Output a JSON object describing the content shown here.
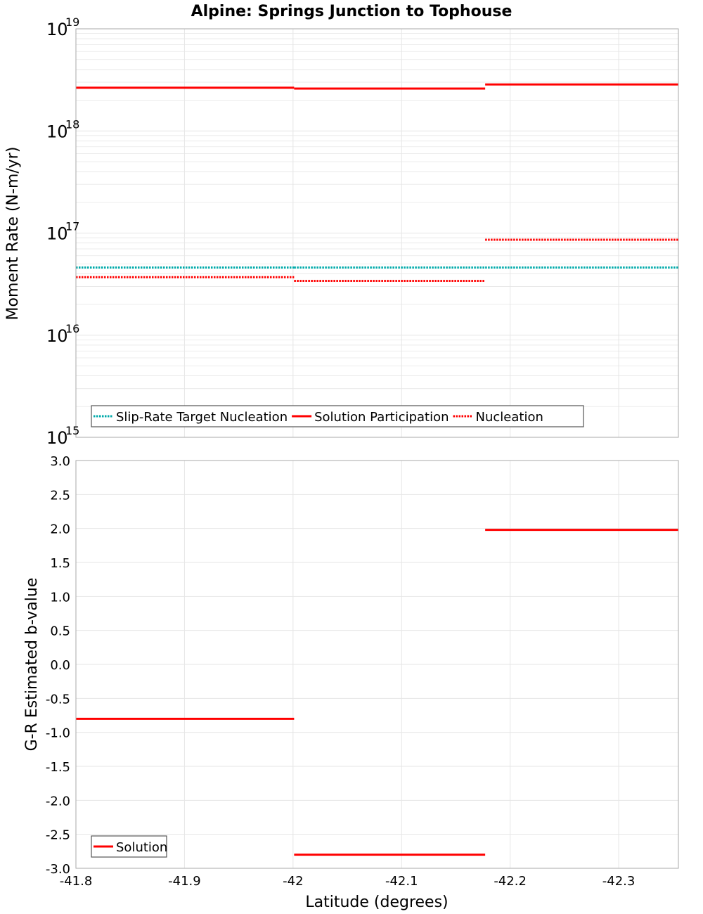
{
  "title": "Alpine: Springs Junction to Tophouse",
  "colors": {
    "solution": "#ff0000",
    "nucleation": "#ff0000",
    "target": "#00aaaa",
    "grid": "#e6e6e6",
    "frame": "#aaaaaa"
  },
  "chart_data": [
    {
      "type": "line",
      "name": "moment-rate",
      "ylabel": "Moment Rate (N-m/yr)",
      "yscale": "log",
      "ylim": [
        1000000000000000.0,
        1e+19
      ],
      "xlim": [
        -41.8,
        -42.355
      ],
      "y_ticks": [
        {
          "value": 1000000000000000.0,
          "base": "10",
          "exp": "15"
        },
        {
          "value": 1e+16,
          "base": "10",
          "exp": "16"
        },
        {
          "value": 1e+17,
          "base": "10",
          "exp": "17"
        },
        {
          "value": 1e+18,
          "base": "10",
          "exp": "18"
        },
        {
          "value": 1e+19,
          "base": "10",
          "exp": "19"
        }
      ],
      "legend": [
        {
          "label": "Slip-Rate Target Nucleation",
          "style": "dotted",
          "color": "#00aaaa"
        },
        {
          "label": "Solution Participation",
          "style": "solid",
          "color": "#ff0000"
        },
        {
          "label": "Nucleation",
          "style": "dotted",
          "color": "#ff0000"
        }
      ],
      "series": [
        {
          "name": "Slip-Rate Target Nucleation",
          "style": "dotted",
          "color": "#00aaaa",
          "segments": [
            {
              "x": [
                -41.8,
                -42.001
              ],
              "y": 4.6e+16
            },
            {
              "x": [
                -42.001,
                -42.177
              ],
              "y": 4.6e+16
            },
            {
              "x": [
                -42.177,
                -42.355
              ],
              "y": 4.6e+16
            }
          ]
        },
        {
          "name": "Solution Participation",
          "style": "solid",
          "color": "#ff0000",
          "segments": [
            {
              "x": [
                -41.8,
                -42.001
              ],
              "y": 2.65e+18
            },
            {
              "x": [
                -42.001,
                -42.177
              ],
              "y": 2.6e+18
            },
            {
              "x": [
                -42.177,
                -42.355
              ],
              "y": 2.85e+18
            }
          ]
        },
        {
          "name": "Nucleation",
          "style": "dotted",
          "color": "#ff0000",
          "segments": [
            {
              "x": [
                -41.8,
                -42.001
              ],
              "y": 3.7e+16
            },
            {
              "x": [
                -42.001,
                -42.177
              ],
              "y": 3.4e+16
            },
            {
              "x": [
                -42.177,
                -42.355
              ],
              "y": 8.6e+16
            }
          ]
        }
      ]
    },
    {
      "type": "line",
      "name": "b-value",
      "ylabel": "G-R Estimated b-value",
      "xlabel": "Latitude (degrees)",
      "yscale": "linear",
      "ylim": [
        -3.0,
        3.0
      ],
      "xlim": [
        -41.8,
        -42.355
      ],
      "y_ticks": [
        "3.0",
        "2.5",
        "2.0",
        "1.5",
        "1.0",
        "0.5",
        "0.0",
        "-0.5",
        "-1.0",
        "-1.5",
        "-2.0",
        "-2.5",
        "-3.0"
      ],
      "x_ticks": [
        "-41.8",
        "-41.9",
        "-42",
        "-42.1",
        "-42.2",
        "-42.3"
      ],
      "legend": [
        {
          "label": "Solution",
          "style": "solid",
          "color": "#ff0000"
        }
      ],
      "series": [
        {
          "name": "Solution",
          "style": "solid",
          "color": "#ff0000",
          "segments": [
            {
              "x": [
                -41.8,
                -42.001
              ],
              "y": -0.8
            },
            {
              "x": [
                -42.001,
                -42.177
              ],
              "y": -2.8
            },
            {
              "x": [
                -42.177,
                -42.355
              ],
              "y": 1.98
            }
          ]
        }
      ]
    }
  ]
}
